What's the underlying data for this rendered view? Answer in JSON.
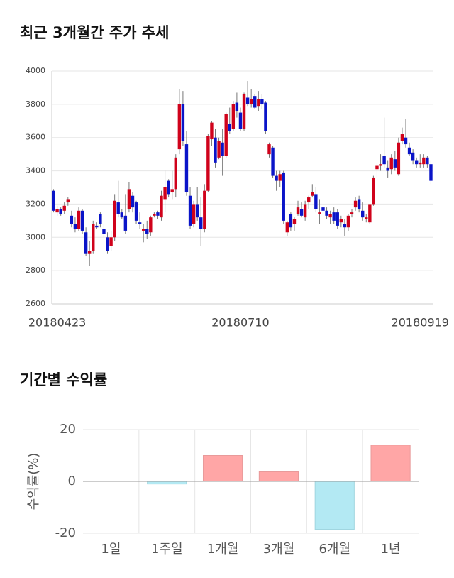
{
  "chart_data": [
    {
      "type": "candlestick",
      "title": "최근 3개월간 주가 추세",
      "categories": [
        null,
        "20180423",
        null,
        null,
        null,
        null,
        null,
        null,
        null,
        null,
        null,
        null,
        null,
        null,
        null,
        null,
        null,
        null,
        null,
        null,
        null,
        null,
        null,
        null,
        null,
        null,
        null,
        null,
        null,
        null,
        null,
        null,
        null,
        null,
        null,
        null,
        null,
        null,
        null,
        null,
        null,
        null,
        null,
        null,
        null,
        null,
        null,
        null,
        null,
        null,
        null,
        null,
        "20180710",
        null,
        null,
        null,
        null,
        null,
        null,
        null,
        null,
        null,
        null,
        null,
        null,
        null,
        null,
        null,
        null,
        null,
        null,
        null,
        null,
        null,
        null,
        null,
        null,
        null,
        null,
        null,
        null,
        null,
        null,
        null,
        null,
        null,
        null,
        null,
        null,
        null,
        null,
        null,
        null,
        null,
        null,
        null,
        null,
        null,
        null,
        null,
        null,
        null,
        "20180919",
        null,
        null,
        null
      ],
      "open": [
        3280,
        3150,
        3170,
        3160,
        3210,
        3130,
        3080,
        3050,
        3160,
        3030,
        2900,
        2920,
        3070,
        3140,
        3050,
        3000,
        2950,
        3000,
        3210,
        3150,
        3130,
        3170,
        3250,
        3210,
        3090,
        3040,
        3050,
        3030,
        3130,
        3150,
        3120,
        3230,
        3340,
        3270,
        3290,
        3530,
        3800,
        3560,
        3250,
        3080,
        3200,
        3120,
        3050,
        3280,
        3590,
        3600,
        3480,
        3570,
        3490,
        3680,
        3650,
        3810,
        3750,
        3650,
        3840,
        3800,
        3850,
        3790,
        3830,
        3810,
        3500,
        3540,
        3370,
        3340,
        3390,
        3030,
        3140,
        3080,
        3140,
        3170,
        3120,
        3210,
        3250,
        3260,
        3140,
        3180,
        3160,
        3120,
        3150,
        3150,
        3090,
        3080,
        3060,
        3140,
        3180,
        3230,
        3160,
        3110,
        3090,
        3200,
        3410,
        3430,
        3490,
        3420,
        3410,
        3470,
        3380,
        3580,
        3600,
        3540,
        3510,
        3460,
        3440,
        3440,
        3480,
        3440
      ],
      "high": [
        3290,
        3190,
        3180,
        3210,
        3240,
        3160,
        3120,
        3180,
        3170,
        3060,
        2980,
        3100,
        3090,
        3150,
        3080,
        3030,
        3040,
        3260,
        3340,
        3170,
        3260,
        3330,
        3270,
        3220,
        3150,
        3080,
        3100,
        3130,
        3150,
        3160,
        3280,
        3400,
        3350,
        3400,
        3500,
        3890,
        3880,
        3640,
        3300,
        3220,
        3300,
        3240,
        3320,
        3620,
        3700,
        3650,
        3600,
        3650,
        3750,
        3780,
        3820,
        3870,
        3780,
        3870,
        3940,
        3890,
        3860,
        3880,
        3860,
        3820,
        3570,
        3550,
        3400,
        3400,
        3400,
        3100,
        3150,
        3120,
        3220,
        3210,
        3220,
        3250,
        3320,
        3300,
        3230,
        3220,
        3180,
        3160,
        3180,
        3170,
        3130,
        3110,
        3140,
        3170,
        3240,
        3250,
        3210,
        3140,
        3200,
        3370,
        3450,
        3500,
        3720,
        3460,
        3500,
        3520,
        3600,
        3660,
        3710,
        3570,
        3530,
        3480,
        3500,
        3500,
        3490,
        3460
      ],
      "low": [
        3150,
        3130,
        3130,
        3140,
        3190,
        3060,
        3030,
        3040,
        3020,
        2890,
        2830,
        2900,
        3050,
        3060,
        3000,
        2900,
        2920,
        2980,
        3120,
        3110,
        3020,
        3150,
        3150,
        3080,
        3050,
        2970,
        2990,
        3010,
        3120,
        3110,
        3100,
        3150,
        3240,
        3230,
        3240,
        3500,
        3550,
        3250,
        3050,
        3060,
        3100,
        2950,
        3030,
        3270,
        3550,
        3420,
        3470,
        3370,
        3480,
        3620,
        3640,
        3720,
        3640,
        3640,
        3790,
        3780,
        3770,
        3760,
        3770,
        3620,
        3480,
        3360,
        3280,
        3300,
        3080,
        3010,
        3040,
        3040,
        3130,
        3120,
        3100,
        3170,
        3240,
        3150,
        3080,
        3130,
        3110,
        3080,
        3080,
        3050,
        3060,
        3010,
        3040,
        3120,
        3160,
        3150,
        3100,
        3090,
        3080,
        3190,
        3360,
        3400,
        3420,
        3360,
        3380,
        3400,
        3370,
        3560,
        3540,
        3490,
        3440,
        3420,
        3420,
        3420,
        3420,
        3320
      ],
      "close": [
        3160,
        3170,
        3140,
        3190,
        3230,
        3080,
        3050,
        3160,
        3040,
        2900,
        2920,
        3080,
        3060,
        3080,
        3020,
        2920,
        3000,
        3220,
        3140,
        3120,
        3040,
        3290,
        3180,
        3100,
        3080,
        3050,
        3020,
        3120,
        3140,
        3130,
        3250,
        3300,
        3260,
        3290,
        3480,
        3800,
        3580,
        3270,
        3070,
        3200,
        3120,
        3050,
        3280,
        3610,
        3690,
        3450,
        3580,
        3490,
        3740,
        3640,
        3800,
        3760,
        3650,
        3860,
        3800,
        3830,
        3780,
        3830,
        3800,
        3640,
        3560,
        3370,
        3340,
        3380,
        3100,
        3090,
        3060,
        3110,
        3180,
        3130,
        3200,
        3240,
        3270,
        3170,
        3150,
        3160,
        3130,
        3140,
        3100,
        3070,
        3110,
        3060,
        3130,
        3150,
        3220,
        3170,
        3120,
        3120,
        3200,
        3360,
        3430,
        3440,
        3440,
        3400,
        3480,
        3420,
        3570,
        3620,
        3560,
        3500,
        3460,
        3440,
        3450,
        3480,
        3440,
        3340
      ],
      "up_color": "#d0021b",
      "down_color": "#0a14c8",
      "ylim": [
        2600,
        4000
      ],
      "yticks": [
        2600,
        2800,
        3000,
        3200,
        3400,
        3600,
        3800,
        4000
      ],
      "grid": true
    },
    {
      "type": "bar",
      "title": "기간별 수익률",
      "y_label": "수익률(%)",
      "categories": [
        "1일",
        "1주일",
        "1개월",
        "3개월",
        "6개월",
        "1년"
      ],
      "values": [
        0,
        -1,
        10,
        3.7,
        -18.5,
        14
      ],
      "positive_color": "#ffa6a6",
      "negative_color": "#b3e9f3",
      "ylim": [
        -20,
        20
      ],
      "yticks": [
        -20,
        0,
        20
      ],
      "grid": true
    }
  ]
}
